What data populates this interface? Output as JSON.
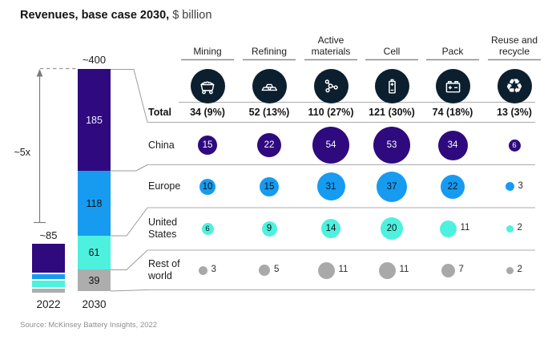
{
  "title": {
    "bold": "Revenues, base case 2030,",
    "regular": "$ billion"
  },
  "source": "Source: McKinsey Battery Insights, 2022",
  "left_chart": {
    "label_2030_total": "~400",
    "label_2022_total": "~85",
    "multiplier_label": "~5x",
    "x_labels": [
      "2022",
      "2030"
    ],
    "bar_2030_segments": [
      {
        "value": "185",
        "color": "#2e0a7e",
        "text_color": "#f1ecff"
      },
      {
        "value": "118",
        "color": "#169bf0",
        "text_color": "#0d1317"
      },
      {
        "value": "61",
        "color": "#4df1de",
        "text_color": "#0d1317"
      },
      {
        "value": "39",
        "color": "#adadad",
        "text_color": "#0d1317"
      }
    ]
  },
  "matrix": {
    "columns": [
      {
        "label": "Mining",
        "icon": "mining-cart-icon"
      },
      {
        "label": "Refining",
        "icon": "ingots-icon"
      },
      {
        "label": "Active materials",
        "icon": "molecule-icon"
      },
      {
        "label": "Cell",
        "icon": "battery-cell-icon"
      },
      {
        "label": "Pack",
        "icon": "battery-pack-icon"
      },
      {
        "label": "Reuse and recycle",
        "icon": "recycle-icon"
      }
    ],
    "total_row": {
      "label": "Total",
      "values": [
        "34 (9%)",
        "52 (13%)",
        "110 (27%)",
        "121 (30%)",
        "74 (18%)",
        "13 (3%)"
      ]
    },
    "rows": [
      {
        "label": "China",
        "color": "#2e0a7e",
        "bubble_text": "#ffffff",
        "values": [
          15,
          22,
          54,
          53,
          34,
          6
        ],
        "label_outside": [
          false,
          false,
          false,
          false,
          false,
          false
        ]
      },
      {
        "label": "Europe",
        "color": "#169bf0",
        "bubble_text": "#0d1317",
        "values": [
          10,
          15,
          31,
          37,
          22,
          3
        ],
        "label_outside": [
          false,
          false,
          false,
          false,
          false,
          true
        ]
      },
      {
        "label": "United States",
        "color": "#4df1de",
        "bubble_text": "#0d1317",
        "values": [
          6,
          9,
          14,
          20,
          11,
          2
        ],
        "label_outside": [
          false,
          false,
          false,
          false,
          true,
          true
        ]
      },
      {
        "label": "Rest of world",
        "color": "#a9a9a9",
        "bubble_text": "#333333",
        "values": [
          3,
          5,
          11,
          11,
          7,
          2
        ],
        "label_outside": [
          true,
          true,
          true,
          true,
          true,
          true
        ]
      }
    ]
  },
  "chart_data": [
    {
      "type": "bar",
      "subtype": "stacked",
      "title": "Revenues, base case 2030, $ billion",
      "categories": [
        "2022",
        "2030"
      ],
      "totals": {
        "2022": "~85",
        "2030": "~400"
      },
      "growth_annotation": "~5x",
      "series": [
        {
          "name": "China",
          "color": "#2e0a7e",
          "values_2030": 185
        },
        {
          "name": "Europe",
          "color": "#169bf0",
          "values_2030": 118
        },
        {
          "name": "United States",
          "color": "#4df1de",
          "values_2030": 61
        },
        {
          "name": "Rest of world",
          "color": "#adadad",
          "values_2030": 39
        }
      ],
      "note": "2022 bar segments shown but not labeled; total ~85"
    },
    {
      "type": "bubble",
      "title": "Revenue by value-chain step and region, $ billion",
      "categories": [
        "Mining",
        "Refining",
        "Active materials",
        "Cell",
        "Pack",
        "Reuse and recycle"
      ],
      "total_row": [
        "34 (9%)",
        "52 (13%)",
        "110 (27%)",
        "121 (30%)",
        "74 (18%)",
        "13 (3%)"
      ],
      "series": [
        {
          "name": "China",
          "values": [
            15,
            22,
            54,
            53,
            34,
            6
          ]
        },
        {
          "name": "Europe",
          "values": [
            10,
            15,
            31,
            37,
            22,
            3
          ]
        },
        {
          "name": "United States",
          "values": [
            6,
            9,
            14,
            20,
            11,
            2
          ]
        },
        {
          "name": "Rest of world",
          "values": [
            3,
            5,
            11,
            11,
            7,
            2
          ]
        }
      ],
      "layout": "bubble area proportional to value; grid rows = regions, columns = value-chain steps"
    }
  ]
}
